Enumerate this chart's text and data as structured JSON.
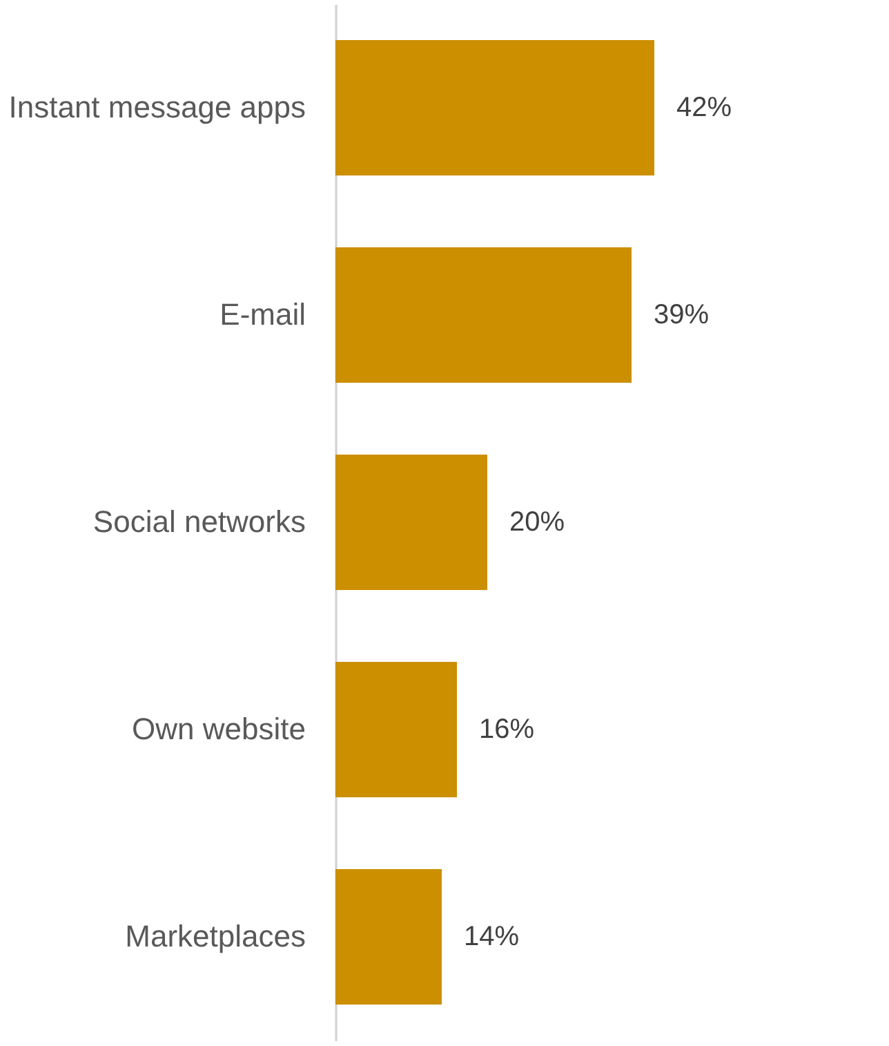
{
  "chart_data": {
    "type": "bar",
    "orientation": "horizontal",
    "categories": [
      "Instant message apps",
      "E-mail",
      "Social networks",
      "Own website",
      "Marketplaces"
    ],
    "values": [
      42,
      39,
      20,
      16,
      14
    ],
    "value_labels": [
      "42%",
      "39%",
      "20%",
      "16%",
      "14%"
    ],
    "color": "#cc8f00"
  }
}
